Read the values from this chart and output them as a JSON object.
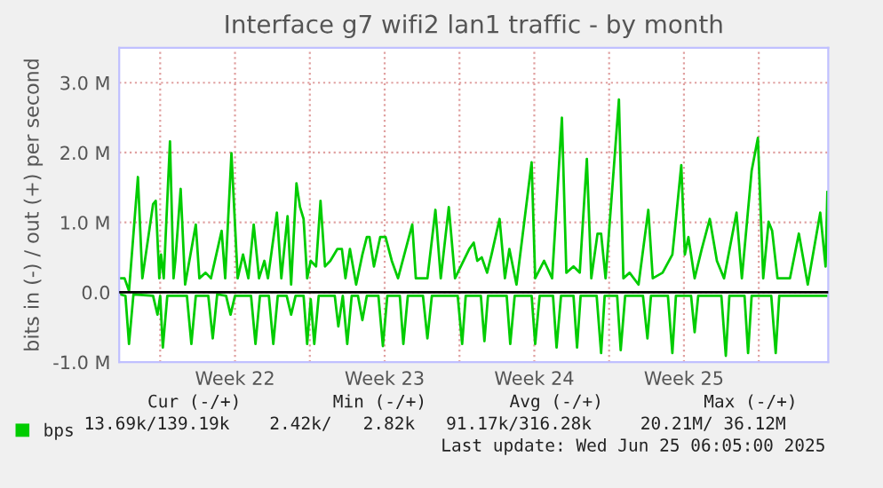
{
  "chart_data": {
    "type": "line",
    "title": "Interface g7 wifi2 lan1 traffic - by month",
    "ylabel": "bits in (-) / out (+) per second",
    "ylim": [
      -1000000,
      3500000
    ],
    "yticks": [
      {
        "value": -1000000,
        "label": "-1.0 M"
      },
      {
        "value": 0,
        "label": "0.0"
      },
      {
        "value": 1000000,
        "label": "1.0 M"
      },
      {
        "value": 2000000,
        "label": "2.0 M"
      },
      {
        "value": 3000000,
        "label": "3.0 M"
      }
    ],
    "xlim": [
      "2025-05-23T02:00",
      "2025-06-25T06:00"
    ],
    "xticks": [
      {
        "value": "2025-05-25",
        "label": null
      },
      {
        "value": "2025-05-28T12:00",
        "label": "Week 22"
      },
      {
        "value": "2025-06-01",
        "label": null
      },
      {
        "value": "2025-06-04T12:00",
        "label": "Week 23"
      },
      {
        "value": "2025-06-08",
        "label": null
      },
      {
        "value": "2025-06-11T12:00",
        "label": "Week 24"
      },
      {
        "value": "2025-06-15",
        "label": null
      },
      {
        "value": "2025-06-18T12:00",
        "label": "Week 25"
      },
      {
        "value": "2025-06-22",
        "label": null
      }
    ],
    "grid": true,
    "legend": "bottom left",
    "line_style": "solid",
    "marker": "none",
    "ref_lines": [
      {
        "axis": "y",
        "value": 0,
        "label": null,
        "color": "#000000"
      }
    ],
    "annotations": [
      "Cur (-/+)",
      "Min (-/+)",
      "Avg (-/+)",
      "Max (-/+)",
      "13.69k/139.19k",
      "2.42k/   2.82k",
      "91.17k/316.28k",
      "20.21M/ 36.12M",
      "Last update: Wed Jun 25 06:05:00 2025"
    ],
    "series": [
      {
        "name": "bps",
        "color": "#00cc00",
        "x": [
          "2025-05-23T03:00",
          "2025-05-23T08:00",
          "2025-05-23T13:00",
          "2025-05-23T23:00",
          "2025-05-24T04:00",
          "2025-05-24T16:00",
          "2025-05-24T19:00",
          "2025-05-24T23:00",
          "2025-05-25T01:00",
          "2025-05-25T04:00",
          "2025-05-25T11:00",
          "2025-05-25T15:00",
          "2025-05-25T17:00",
          "2025-05-25T23:00",
          "2025-05-26T04:00",
          "2025-05-26T16:00",
          "2025-05-26T20:00",
          "2025-05-27T03:00",
          "2025-05-27T09:00",
          "2025-05-27T21:00",
          "2025-05-28T01:00",
          "2025-05-28T08:00",
          "2025-05-28T15:00",
          "2025-05-28T21:00",
          "2025-05-29T03:00",
          "2025-05-29T09:00",
          "2025-05-29T15:00",
          "2025-05-29T21:00",
          "2025-05-30T01:00",
          "2025-05-30T11:00",
          "2025-05-30T16:00",
          "2025-05-30T23:00",
          "2025-05-31T03:00",
          "2025-05-31T09:00",
          "2025-05-31T13:00",
          "2025-05-31T17:00",
          "2025-05-31T21:00",
          "2025-06-01T01:00",
          "2025-06-01T07:00",
          "2025-06-01T12:00",
          "2025-06-01T17:00",
          "2025-06-01T23:00",
          "2025-06-02T07:00",
          "2025-06-02T12:00",
          "2025-06-02T16:00",
          "2025-06-02T21:00",
          "2025-06-03T04:00",
          "2025-06-03T11:00",
          "2025-06-03T16:00",
          "2025-06-03T19:00",
          "2025-06-04T00:00",
          "2025-06-04T07:00",
          "2025-06-04T13:00",
          "2025-06-04T20:00",
          "2025-06-05T03:00",
          "2025-06-05T19:00",
          "2025-06-05T23:00",
          "2025-06-06T12:00",
          "2025-06-06T21:00",
          "2025-06-07T03:00",
          "2025-06-07T12:00",
          "2025-06-07T19:00",
          "2025-06-08T11:00",
          "2025-06-08T16:00",
          "2025-06-08T20:00",
          "2025-06-09T01:00",
          "2025-06-09T07:00",
          "2025-06-09T12:00",
          "2025-06-09T21:00",
          "2025-06-10T03:00",
          "2025-06-10T08:00",
          "2025-06-10T16:00",
          "2025-06-11T09:00",
          "2025-06-11T13:00",
          "2025-06-11T23:00",
          "2025-06-12T08:00",
          "2025-06-12T19:00",
          "2025-06-13T00:00",
          "2025-06-13T08:00",
          "2025-06-13T15:00",
          "2025-06-13T23:00",
          "2025-06-14T04:00",
          "2025-06-14T11:00",
          "2025-06-14T15:00",
          "2025-06-14T20:00",
          "2025-06-15T11:00",
          "2025-06-15T16:00",
          "2025-06-15T23:00",
          "2025-06-16T09:00",
          "2025-06-16T20:00",
          "2025-06-17T01:00",
          "2025-06-17T12:00",
          "2025-06-17T23:00",
          "2025-06-18T01:00",
          "2025-06-18T09:00",
          "2025-06-18T13:00",
          "2025-06-18T17:00",
          "2025-06-19T00:00",
          "2025-06-19T08:00",
          "2025-06-19T17:00",
          "2025-06-20T01:00",
          "2025-06-20T09:00",
          "2025-06-20T23:00",
          "2025-06-21T05:00",
          "2025-06-21T16:00",
          "2025-06-21T23:00",
          "2025-06-22T05:00",
          "2025-06-22T11:00",
          "2025-06-22T15:00",
          "2025-06-22T21:00",
          "2025-06-23T11:00",
          "2025-06-23T21:00",
          "2025-06-24T07:00",
          "2025-06-24T21:00",
          "2025-06-25T03:00",
          "2025-06-25T05:00"
        ],
        "values": [
          200000,
          200000,
          20000,
          1650000,
          200000,
          1260000,
          1310000,
          200000,
          540000,
          200000,
          2160000,
          200000,
          450000,
          1480000,
          110000,
          970000,
          200000,
          280000,
          200000,
          880000,
          200000,
          1990000,
          200000,
          540000,
          200000,
          970000,
          200000,
          450000,
          200000,
          1140000,
          200000,
          1090000,
          110000,
          1560000,
          1220000,
          1050000,
          200000,
          450000,
          370000,
          1310000,
          370000,
          450000,
          620000,
          620000,
          200000,
          620000,
          110000,
          540000,
          790000,
          790000,
          370000,
          790000,
          790000,
          450000,
          200000,
          970000,
          200000,
          200000,
          1180000,
          200000,
          1220000,
          200000,
          620000,
          710000,
          450000,
          500000,
          280000,
          540000,
          1050000,
          200000,
          620000,
          110000,
          1860000,
          200000,
          450000,
          200000,
          2500000,
          280000,
          370000,
          280000,
          1910000,
          200000,
          840000,
          840000,
          200000,
          2760000,
          200000,
          280000,
          110000,
          1180000,
          200000,
          280000,
          540000,
          790000,
          1820000,
          540000,
          790000,
          200000,
          620000,
          1050000,
          450000,
          200000,
          1140000,
          200000,
          1740000,
          2210000,
          200000,
          1010000,
          880000,
          200000,
          200000,
          840000,
          110000,
          1140000,
          370000,
          1440000
        ]
      },
      {
        "color": "#00cc00",
        "x": [
          "2025-05-23T03:00",
          "2025-05-23T09:00",
          "2025-05-23T13:00",
          "2025-05-23T18:00",
          "2025-05-24T16:00",
          "2025-05-24T21:00",
          "2025-05-25T00:00",
          "2025-05-25T03:00",
          "2025-05-25T08:00",
          "2025-05-26T06:00",
          "2025-05-26T11:00",
          "2025-05-26T16:00",
          "2025-05-27T06:00",
          "2025-05-27T11:00",
          "2025-05-27T16:00",
          "2025-05-28T02:00",
          "2025-05-28T07:00",
          "2025-05-28T12:00",
          "2025-05-29T06:00",
          "2025-05-29T11:00",
          "2025-05-29T16:00",
          "2025-05-30T02:00",
          "2025-05-30T07:00",
          "2025-05-30T12:00",
          "2025-05-30T22:00",
          "2025-05-31T03:00",
          "2025-05-31T08:00",
          "2025-05-31T17:00",
          "2025-05-31T21:00",
          "2025-06-01T01:00",
          "2025-06-01T05:00",
          "2025-06-01T10:00",
          "2025-06-02T04:00",
          "2025-06-02T08:00",
          "2025-06-02T13:00",
          "2025-06-02T18:00",
          "2025-06-02T23:00",
          "2025-06-03T06:00",
          "2025-06-03T11:00",
          "2025-06-03T16:00",
          "2025-06-04T05:00",
          "2025-06-04T10:00",
          "2025-06-04T15:00",
          "2025-06-05T05:00",
          "2025-06-05T09:00",
          "2025-06-05T14:00",
          "2025-06-06T07:00",
          "2025-06-06T12:00",
          "2025-06-06T17:00",
          "2025-06-07T22:00",
          "2025-06-08T03:00",
          "2025-06-08T07:00",
          "2025-06-09T00:00",
          "2025-06-09T04:00",
          "2025-06-09T08:00",
          "2025-06-10T05:00",
          "2025-06-10T09:00",
          "2025-06-10T14:00",
          "2025-06-11T09:00",
          "2025-06-11T13:00",
          "2025-06-11T18:00",
          "2025-06-12T09:00",
          "2025-06-12T13:00",
          "2025-06-12T18:00",
          "2025-06-13T08:00",
          "2025-06-13T12:00",
          "2025-06-13T16:00",
          "2025-06-14T10:00",
          "2025-06-14T15:00",
          "2025-06-14T19:00",
          "2025-06-15T09:00",
          "2025-06-15T13:00",
          "2025-06-15T18:00",
          "2025-06-16T14:00",
          "2025-06-16T19:00",
          "2025-06-16T23:00",
          "2025-06-17T18:00",
          "2025-06-17T23:00",
          "2025-06-18T03:00",
          "2025-06-18T20:00",
          "2025-06-19T00:00",
          "2025-06-19T04:00",
          "2025-06-20T06:00",
          "2025-06-20T11:00",
          "2025-06-20T15:00",
          "2025-06-21T08:00",
          "2025-06-21T12:00",
          "2025-06-21T16:00",
          "2025-06-22T14:00",
          "2025-06-22T19:00",
          "2025-06-22T23:00",
          "2025-06-25T06:00"
        ],
        "values": [
          -30000,
          -50000,
          -740000,
          -30000,
          -50000,
          -320000,
          -50000,
          -790000,
          -50000,
          -50000,
          -740000,
          -50000,
          -50000,
          -660000,
          -30000,
          -50000,
          -320000,
          -50000,
          -50000,
          -740000,
          -50000,
          -50000,
          -740000,
          -50000,
          -50000,
          -320000,
          -50000,
          -50000,
          -740000,
          -100000,
          -740000,
          -50000,
          -50000,
          -490000,
          -50000,
          -740000,
          -50000,
          -50000,
          -400000,
          -50000,
          -50000,
          -770000,
          -50000,
          -50000,
          -740000,
          -50000,
          -50000,
          -660000,
          -50000,
          -50000,
          -740000,
          -50000,
          -50000,
          -700000,
          -50000,
          -50000,
          -740000,
          -50000,
          -50000,
          -740000,
          -50000,
          -50000,
          -790000,
          -50000,
          -50000,
          -790000,
          -50000,
          -50000,
          -870000,
          -50000,
          -50000,
          -830000,
          -50000,
          -50000,
          -660000,
          -50000,
          -50000,
          -870000,
          -50000,
          -50000,
          -570000,
          -50000,
          -50000,
          -910000,
          -50000,
          -50000,
          -870000,
          -50000,
          -50000,
          -870000,
          -50000,
          -50000
        ]
      }
    ]
  }
}
